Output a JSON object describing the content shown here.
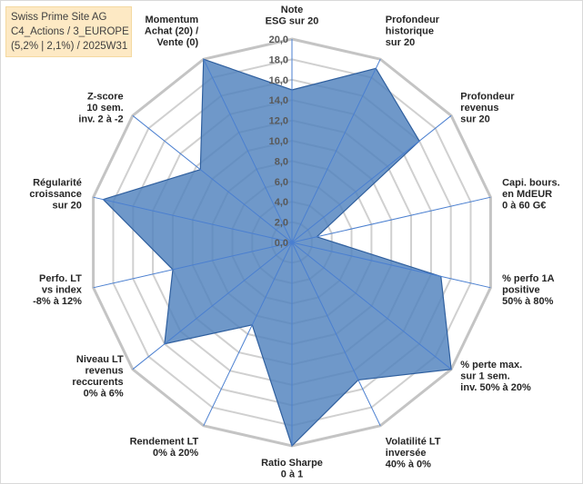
{
  "info_box": {
    "line1": "Swiss Prime Site AG",
    "line2": "C4_Actions / 3_EUROPE",
    "line3": "(5,2% | 2,1%) / 2025W31"
  },
  "colors": {
    "fill": "#4f81bd",
    "stroke": "#2f5f9e",
    "grid": "#d0d0d0",
    "spoke": "#4a7fd0",
    "info_bg": "#fde9c4"
  },
  "chart_data": {
    "type": "radar",
    "grid": true,
    "rmin": 0,
    "rmax": 20,
    "tick_labels": [
      "0,0",
      "2,0",
      "4,0",
      "6,0",
      "8,0",
      "10,0",
      "12,0",
      "14,0",
      "16,0",
      "18,0",
      "20,0"
    ],
    "axes": [
      [
        "Note",
        "ESG sur 20"
      ],
      [
        "Profondeur",
        "historique",
        "sur 20"
      ],
      [
        "Profondeur",
        "revenus",
        "sur 20"
      ],
      [
        "Capi. bours.",
        "en MdEUR",
        "0 à 60 G€"
      ],
      [
        "% perfo 1A",
        "positive",
        "50% à 80%"
      ],
      [
        "% perte max.",
        "sur 1 sem.",
        "inv. 50% à 20%"
      ],
      [
        "Volatilité LT",
        "inversée",
        "40% à 0%"
      ],
      [
        "Ratio Sharpe",
        "0 à 1"
      ],
      [
        "Rendement LT",
        "0% à 20%"
      ],
      [
        "Niveau LT",
        "revenus",
        "reccurents",
        "0% à 6%"
      ],
      [
        "Perfo. LT",
        "vs index",
        "-8% à 12%"
      ],
      [
        "Régularité",
        "croissance",
        "sur 20"
      ],
      [
        "Z-score",
        "10 sem.",
        "inv. 2 à -2"
      ],
      [
        "Momentum",
        "Achat (20) /",
        "Vente (0)"
      ]
    ],
    "values": [
      15,
      19,
      16,
      2.5,
      15,
      20,
      15,
      20,
      9,
      16,
      12,
      19,
      11.5,
      20
    ]
  }
}
